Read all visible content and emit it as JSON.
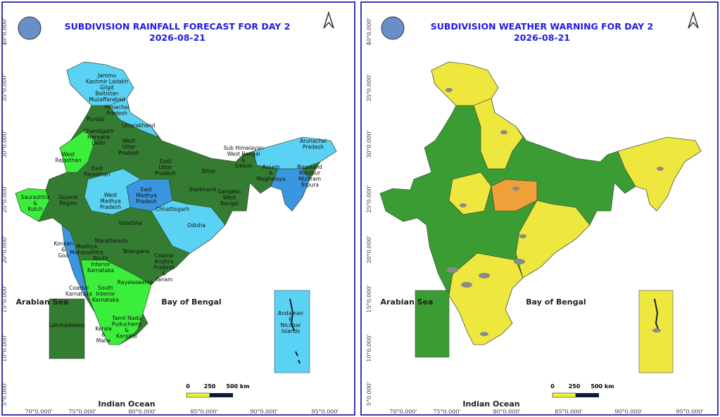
{
  "panels": [
    {
      "title": "SUBDIVISION RAINFALL FORECAST FOR DAY 2",
      "date": "2026-08-21",
      "seas": [
        "Arabian Sea",
        "Bay of Bengal",
        "Indian Ocean"
      ],
      "scale": [
        "0",
        "250",
        "500 km"
      ],
      "regions": [
        [
          "Jammu",
          "Kashmir Ladakh",
          "Gilgit",
          "Baltistan",
          "Muzaffarabad"
        ],
        [
          "Himachal",
          "Pradesh"
        ],
        [
          "Punjab"
        ],
        [
          "Uttarakhand"
        ],
        [
          "Chandigarh",
          "Haryana",
          "Delhi"
        ],
        [
          "West",
          "Uttar",
          "Pradesh"
        ],
        [
          "West",
          "Rajasthan"
        ],
        [
          "East",
          "Rajasthan"
        ],
        [
          "East",
          "Uttar",
          "Pradesh"
        ],
        [
          "Bihar"
        ],
        [
          "Sub Himalayan",
          "West Bengal",
          "&",
          "Sikkim"
        ],
        [
          "Arunachal",
          "Pradesh"
        ],
        [
          "Assam",
          "&",
          "Meghalaya"
        ],
        [
          "Nagaland",
          "Manipur",
          "Mizoram",
          "Tripura"
        ],
        [
          "Saurashtra",
          "&",
          "Kutch"
        ],
        [
          "Gujarat",
          "Region"
        ],
        [
          "West",
          "Madhya",
          "Pradesh"
        ],
        [
          "East",
          "Madhya",
          "Pradesh"
        ],
        [
          "Jharkhand"
        ],
        [
          "Gangetic",
          "West",
          "Bengal"
        ],
        [
          "Chhattisgarh"
        ],
        [
          "Odisha"
        ],
        [
          "Vidarbha"
        ],
        [
          "Konkan",
          "&",
          "Goa"
        ],
        [
          "Madhya",
          "Maharashtra"
        ],
        [
          "Marathwada"
        ],
        [
          "Telangana"
        ],
        [
          "Coastal",
          "Andhra",
          "Pradesh",
          "&",
          "Yanam"
        ],
        [
          "North",
          "Interior",
          "Karnataka"
        ],
        [
          "Rayalaseema"
        ],
        [
          "Coastal",
          "Karnataka"
        ],
        [
          "South",
          "Interior",
          "Karnataka"
        ],
        [
          "Lakshadweep"
        ],
        [
          "Tamil Nadu",
          "Puducherry",
          "&",
          "Karaikal"
        ],
        [
          "Kerala",
          "&",
          "Mahe"
        ],
        [
          "Andaman",
          "&",
          "Nicobar",
          "Islands"
        ]
      ]
    },
    {
      "title": "SUBDIVISION WEATHER WARNING FOR DAY 2",
      "date": "2026-08-21",
      "seas": [
        "Arabian Sea",
        "Bay of Bengal",
        "Indian Ocean"
      ],
      "scale": [
        "0",
        "250",
        "500 km"
      ]
    }
  ],
  "lat_labels": [
    "40°0.000'",
    "35°0.000'",
    "30°0.000'",
    "25°0.000'",
    "20°0.000'",
    "15°0.000'",
    "10°0.000'",
    "5°0.000'"
  ],
  "lon_labels": [
    "70°0.000'",
    "75°0.000'",
    "80°0.000'",
    "85°0.000'",
    "90°0.000'",
    "95°0.000'"
  ]
}
